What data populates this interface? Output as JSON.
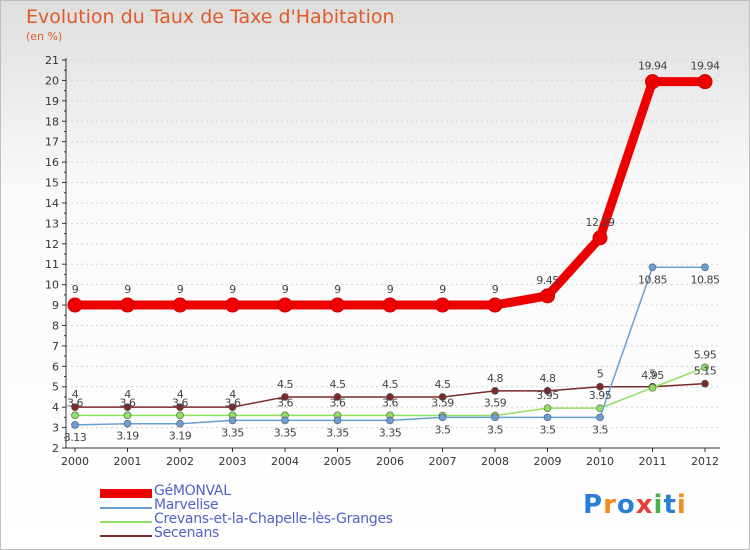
{
  "title": "Evolution du Taux de Taxe d'Habitation",
  "subtitle": "(en %)",
  "logo": {
    "text": "Proxiti",
    "colors": [
      "#2a7fd6",
      "#f28c1c",
      "#2a7fd6",
      "#e83d3d",
      "#4caf50",
      "#2a7fd6",
      "#f28c1c"
    ]
  },
  "chart_data": {
    "type": "line",
    "x": [
      "2000",
      "2001",
      "2002",
      "2003",
      "2004",
      "2005",
      "2006",
      "2007",
      "2008",
      "2009",
      "2010",
      "2011",
      "2012"
    ],
    "ylim": [
      2,
      21
    ],
    "yticks": [
      "2",
      "3",
      "4",
      "5",
      "6",
      "7",
      "8",
      "9",
      "10",
      "11",
      "12",
      "13",
      "14",
      "15",
      "16",
      "17",
      "18",
      "19",
      "20",
      "21"
    ],
    "grid": "horizontal",
    "legend_position": "bottom-left",
    "series": [
      {
        "name": "GéMONVAL",
        "color": "#ee0000",
        "values": [
          9,
          9,
          9,
          9,
          9,
          9,
          9,
          9,
          9,
          9.45,
          12.29,
          19.94,
          19.94
        ],
        "labels": [
          "9",
          "9",
          "9",
          "9",
          "9",
          "9",
          "9",
          "9",
          "9",
          "9.45",
          "12.29",
          "19.94",
          "19.94"
        ]
      },
      {
        "name": "Marvelise",
        "color": "#6b9fd4",
        "values": [
          3.13,
          3.19,
          3.19,
          3.35,
          3.35,
          3.35,
          3.35,
          3.5,
          3.5,
          3.5,
          3.5,
          10.85,
          10.85
        ],
        "labels": [
          "3.13",
          "3.19",
          "3.19",
          "3.35",
          "3.35",
          "3.35",
          "3.35",
          "3.5",
          "3.5",
          "3.5",
          "3.5",
          "10.85",
          "10.85"
        ]
      },
      {
        "name": "Crevans-et-la-Chapelle-lès-Granges",
        "color": "#8fe060",
        "values": [
          3.6,
          3.6,
          3.6,
          3.6,
          3.6,
          3.6,
          3.6,
          3.59,
          3.59,
          3.95,
          3.95,
          4.95,
          5.95
        ],
        "labels": [
          "3.6",
          "3.6",
          "3.6",
          "3.6",
          "3.6",
          "3.6",
          "3.6",
          "3.59",
          "3.59",
          "3.95",
          "3.95",
          "4.95",
          "5.95"
        ]
      },
      {
        "name": "Secenans",
        "color": "#7a2a2a",
        "values": [
          4,
          4,
          4,
          4,
          4.5,
          4.5,
          4.5,
          4.5,
          4.8,
          4.8,
          5,
          5,
          5.15
        ],
        "labels": [
          "4",
          "4",
          "4",
          "4",
          "4.5",
          "4.5",
          "4.5",
          "4.5",
          "4.8",
          "4.8",
          "5",
          "5",
          "5.15"
        ]
      }
    ]
  }
}
